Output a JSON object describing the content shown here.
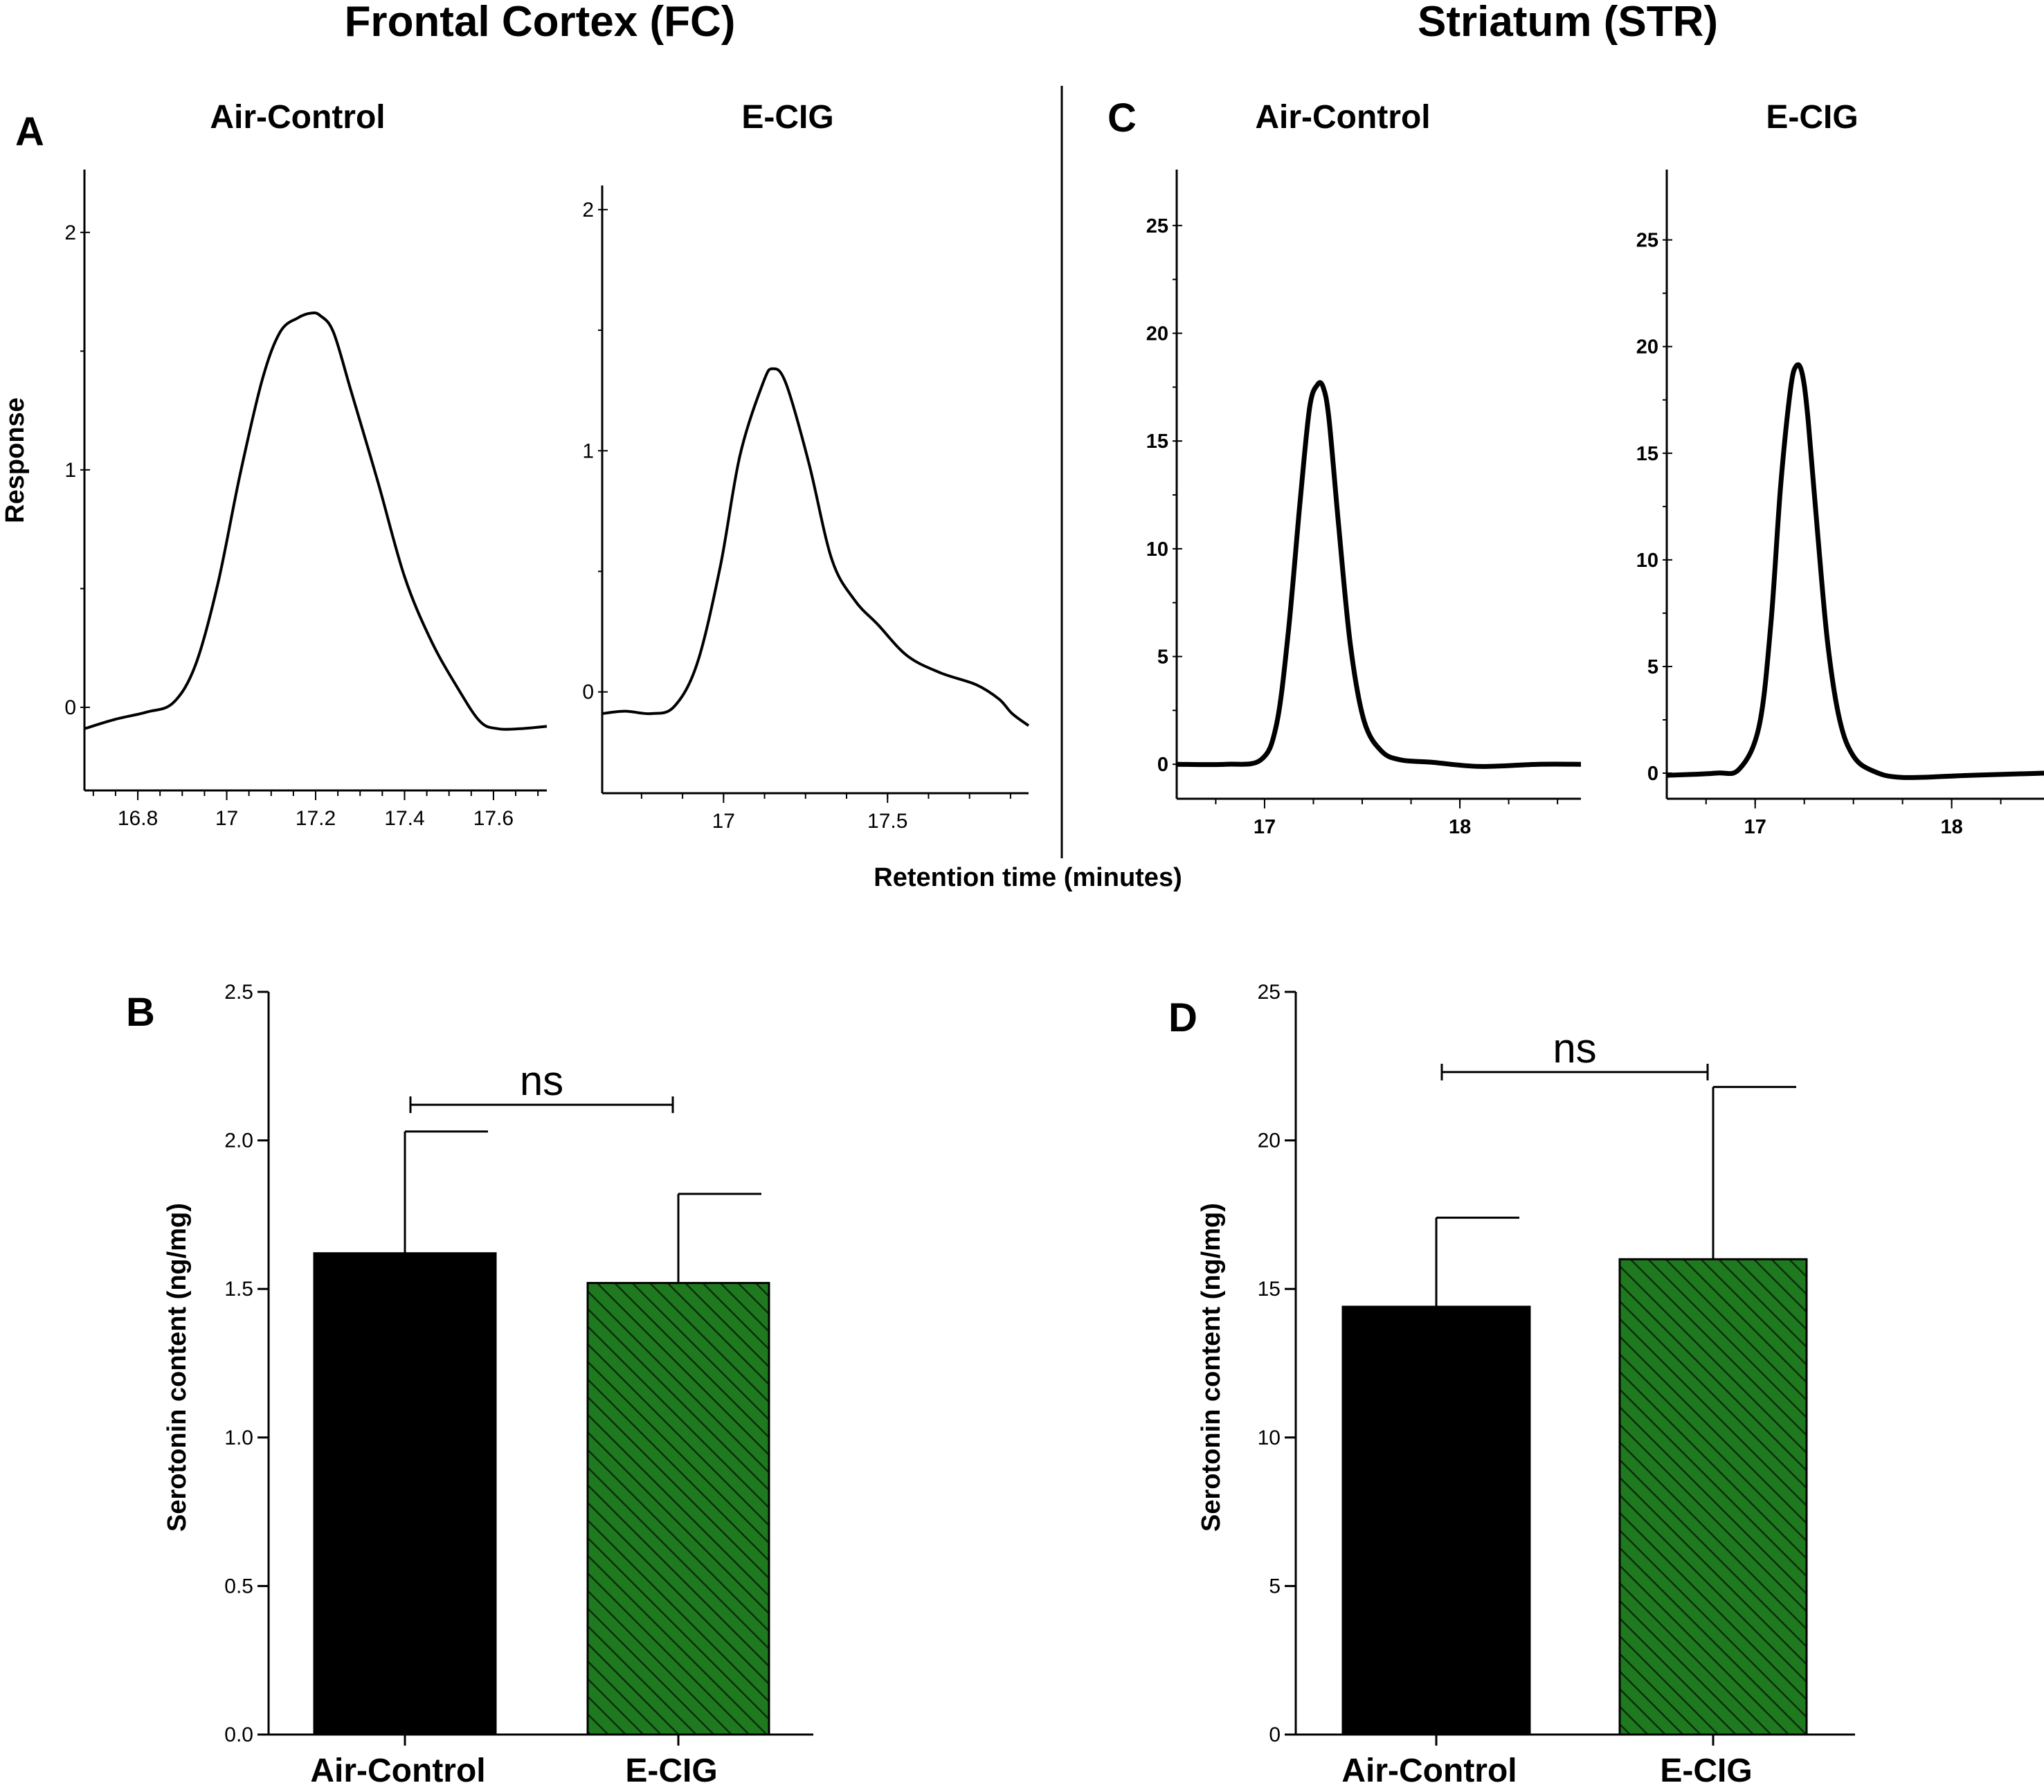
{
  "header": {
    "left_title": "Frontal Cortex (FC)",
    "right_title": "Striatum (STR)"
  },
  "shared": {
    "x_axis_label": "Retention time (minutes)",
    "y_axis_label_A": "Response"
  },
  "colors": {
    "line": "#000000",
    "air_bar": "#000000",
    "ecig_bar": "#1f7a1f",
    "hatch": "#0b2e0b"
  },
  "chart_data": [
    {
      "id": "A-air",
      "panel": "A",
      "type": "line",
      "title": "Air-Control",
      "ylabel": "Response",
      "xlim": [
        16.68,
        17.72
      ],
      "ylim": [
        -0.35,
        2.25
      ],
      "x_ticks": [
        "16.8",
        "17",
        "17.2",
        "17.4",
        "17.6"
      ],
      "y_ticks": [
        "0",
        "1",
        "2"
      ],
      "x": [
        16.68,
        16.75,
        16.82,
        16.88,
        16.93,
        16.98,
        17.03,
        17.08,
        17.12,
        17.16,
        17.19,
        17.21,
        17.24,
        17.28,
        17.34,
        17.4,
        17.46,
        17.52,
        17.57,
        17.61,
        17.66,
        17.72
      ],
      "y": [
        -0.09,
        -0.05,
        -0.02,
        0.02,
        0.18,
        0.52,
        0.98,
        1.38,
        1.58,
        1.64,
        1.66,
        1.65,
        1.58,
        1.33,
        0.95,
        0.55,
        0.28,
        0.08,
        -0.06,
        -0.09,
        -0.09,
        -0.08
      ]
    },
    {
      "id": "A-ecig",
      "panel": "A",
      "type": "line",
      "title": "E-CIG",
      "xlim": [
        16.63,
        17.93
      ],
      "ylim": [
        -0.42,
        2.1
      ],
      "x_ticks": [
        "17",
        "17.5"
      ],
      "y_ticks": [
        "0",
        "1",
        "2"
      ],
      "x": [
        16.63,
        16.7,
        16.78,
        16.85,
        16.92,
        16.99,
        17.05,
        17.12,
        17.15,
        17.19,
        17.26,
        17.33,
        17.4,
        17.47,
        17.56,
        17.66,
        17.77,
        17.84,
        17.88,
        17.93
      ],
      "y": [
        -0.09,
        -0.08,
        -0.09,
        -0.06,
        0.12,
        0.52,
        0.98,
        1.28,
        1.34,
        1.28,
        0.95,
        0.55,
        0.38,
        0.28,
        0.15,
        0.08,
        0.03,
        -0.03,
        -0.09,
        -0.14
      ]
    },
    {
      "id": "C-air",
      "panel": "C",
      "type": "line",
      "title": "Air-Control",
      "xlim": [
        16.55,
        18.62
      ],
      "ylim": [
        -1.6,
        27.5
      ],
      "x_ticks": [
        "17",
        "18"
      ],
      "y_ticks": [
        "0",
        "5",
        "10",
        "15",
        "20",
        "25"
      ],
      "x": [
        16.55,
        16.8,
        16.98,
        17.06,
        17.12,
        17.18,
        17.23,
        17.27,
        17.3,
        17.33,
        17.38,
        17.44,
        17.51,
        17.6,
        17.7,
        17.85,
        18.1,
        18.4,
        18.62
      ],
      "y": [
        0.0,
        0.0,
        0.2,
        1.8,
        6.0,
        12.0,
        16.5,
        17.6,
        17.5,
        16.0,
        11.0,
        5.5,
        2.0,
        0.6,
        0.2,
        0.1,
        -0.1,
        0.0,
        0.0
      ]
    },
    {
      "id": "C-ecig",
      "panel": "C",
      "type": "line",
      "title": "E-CIG",
      "xlim": [
        16.55,
        18.47
      ],
      "ylim": [
        -1.2,
        28.2
      ],
      "x_ticks": [
        "17",
        "18"
      ],
      "y_ticks": [
        "0",
        "5",
        "10",
        "15",
        "20",
        "25"
      ],
      "x": [
        16.55,
        16.8,
        16.92,
        17.02,
        17.08,
        17.13,
        17.18,
        17.21,
        17.24,
        17.27,
        17.32,
        17.37,
        17.43,
        17.5,
        17.6,
        17.75,
        18.1,
        18.47
      ],
      "y": [
        -0.1,
        0.0,
        0.2,
        2.2,
        7.0,
        13.5,
        18.0,
        19.1,
        18.7,
        16.5,
        11.0,
        6.0,
        2.5,
        0.8,
        0.1,
        -0.2,
        -0.1,
        0.0
      ]
    },
    {
      "id": "B",
      "panel": "B",
      "type": "bar",
      "categories": [
        "Air-Control",
        "E-CIG"
      ],
      "values": [
        1.62,
        1.52
      ],
      "error": [
        0.41,
        0.3
      ],
      "ylabel": "Serotonin content  (ng/mg)",
      "ylim": [
        0,
        2.5
      ],
      "y_ticks": [
        "0.0",
        "0.5",
        "1.0",
        "1.5",
        "2.0",
        "2.5"
      ],
      "y_tick_values": [
        0,
        0.5,
        1.0,
        1.5,
        2.0,
        2.5
      ],
      "significance": "ns",
      "bracket_value": 2.12
    },
    {
      "id": "D",
      "panel": "D",
      "type": "bar",
      "categories": [
        "Air-Control",
        "E-CIG"
      ],
      "values": [
        14.4,
        16.0
      ],
      "error": [
        3.0,
        5.8
      ],
      "ylabel": "Serotonin content  (ng/mg)",
      "ylim": [
        0,
        25
      ],
      "y_ticks": [
        "0",
        "5",
        "10",
        "15",
        "20",
        "25"
      ],
      "y_tick_values": [
        0,
        5,
        10,
        15,
        20,
        25
      ],
      "significance": "ns",
      "bracket_value": 22.3
    }
  ]
}
